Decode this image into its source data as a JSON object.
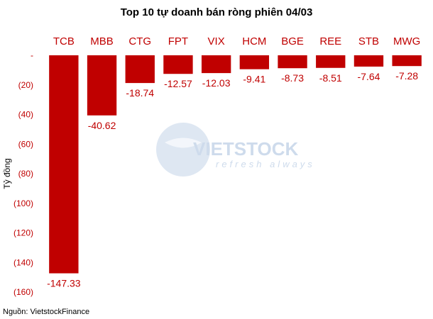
{
  "chart_data": {
    "type": "bar",
    "title": "Top 10 tự doanh bán ròng phiên 04/03",
    "ylabel": "Tỷ đồng",
    "xlabel": "",
    "categories": [
      "TCB",
      "MBB",
      "CTG",
      "FPT",
      "VIX",
      "HCM",
      "BGE",
      "REE",
      "STB",
      "MWG"
    ],
    "values": [
      -147.33,
      -40.62,
      -18.74,
      -12.57,
      -12.03,
      -9.41,
      -8.73,
      -8.51,
      -7.64,
      -7.28
    ],
    "value_labels": [
      "-147.33",
      "-40.62",
      "-18.74",
      "-12.57",
      "-12.03",
      "-9.41",
      "-8.73",
      "-8.51",
      "-7.64",
      "-7.28"
    ],
    "ylim": [
      -160,
      0
    ],
    "yticks": [
      0,
      -20,
      -40,
      -60,
      -80,
      -100,
      -120,
      -140,
      -160
    ],
    "ytick_labels": [
      "-",
      "(20)",
      "(40)",
      "(60)",
      "(80)",
      "(100)",
      "(120)",
      "(140)",
      "(160)"
    ],
    "categories_position": "top",
    "grid": false,
    "legend": "none",
    "bar_color": "#c00000",
    "text_color": "#c00000"
  },
  "watermark": {
    "brand": "VIETSTOCK",
    "tagline": "refresh always",
    "color": "#c9d8ea"
  },
  "source": "Nguồn: VietstockFinance"
}
